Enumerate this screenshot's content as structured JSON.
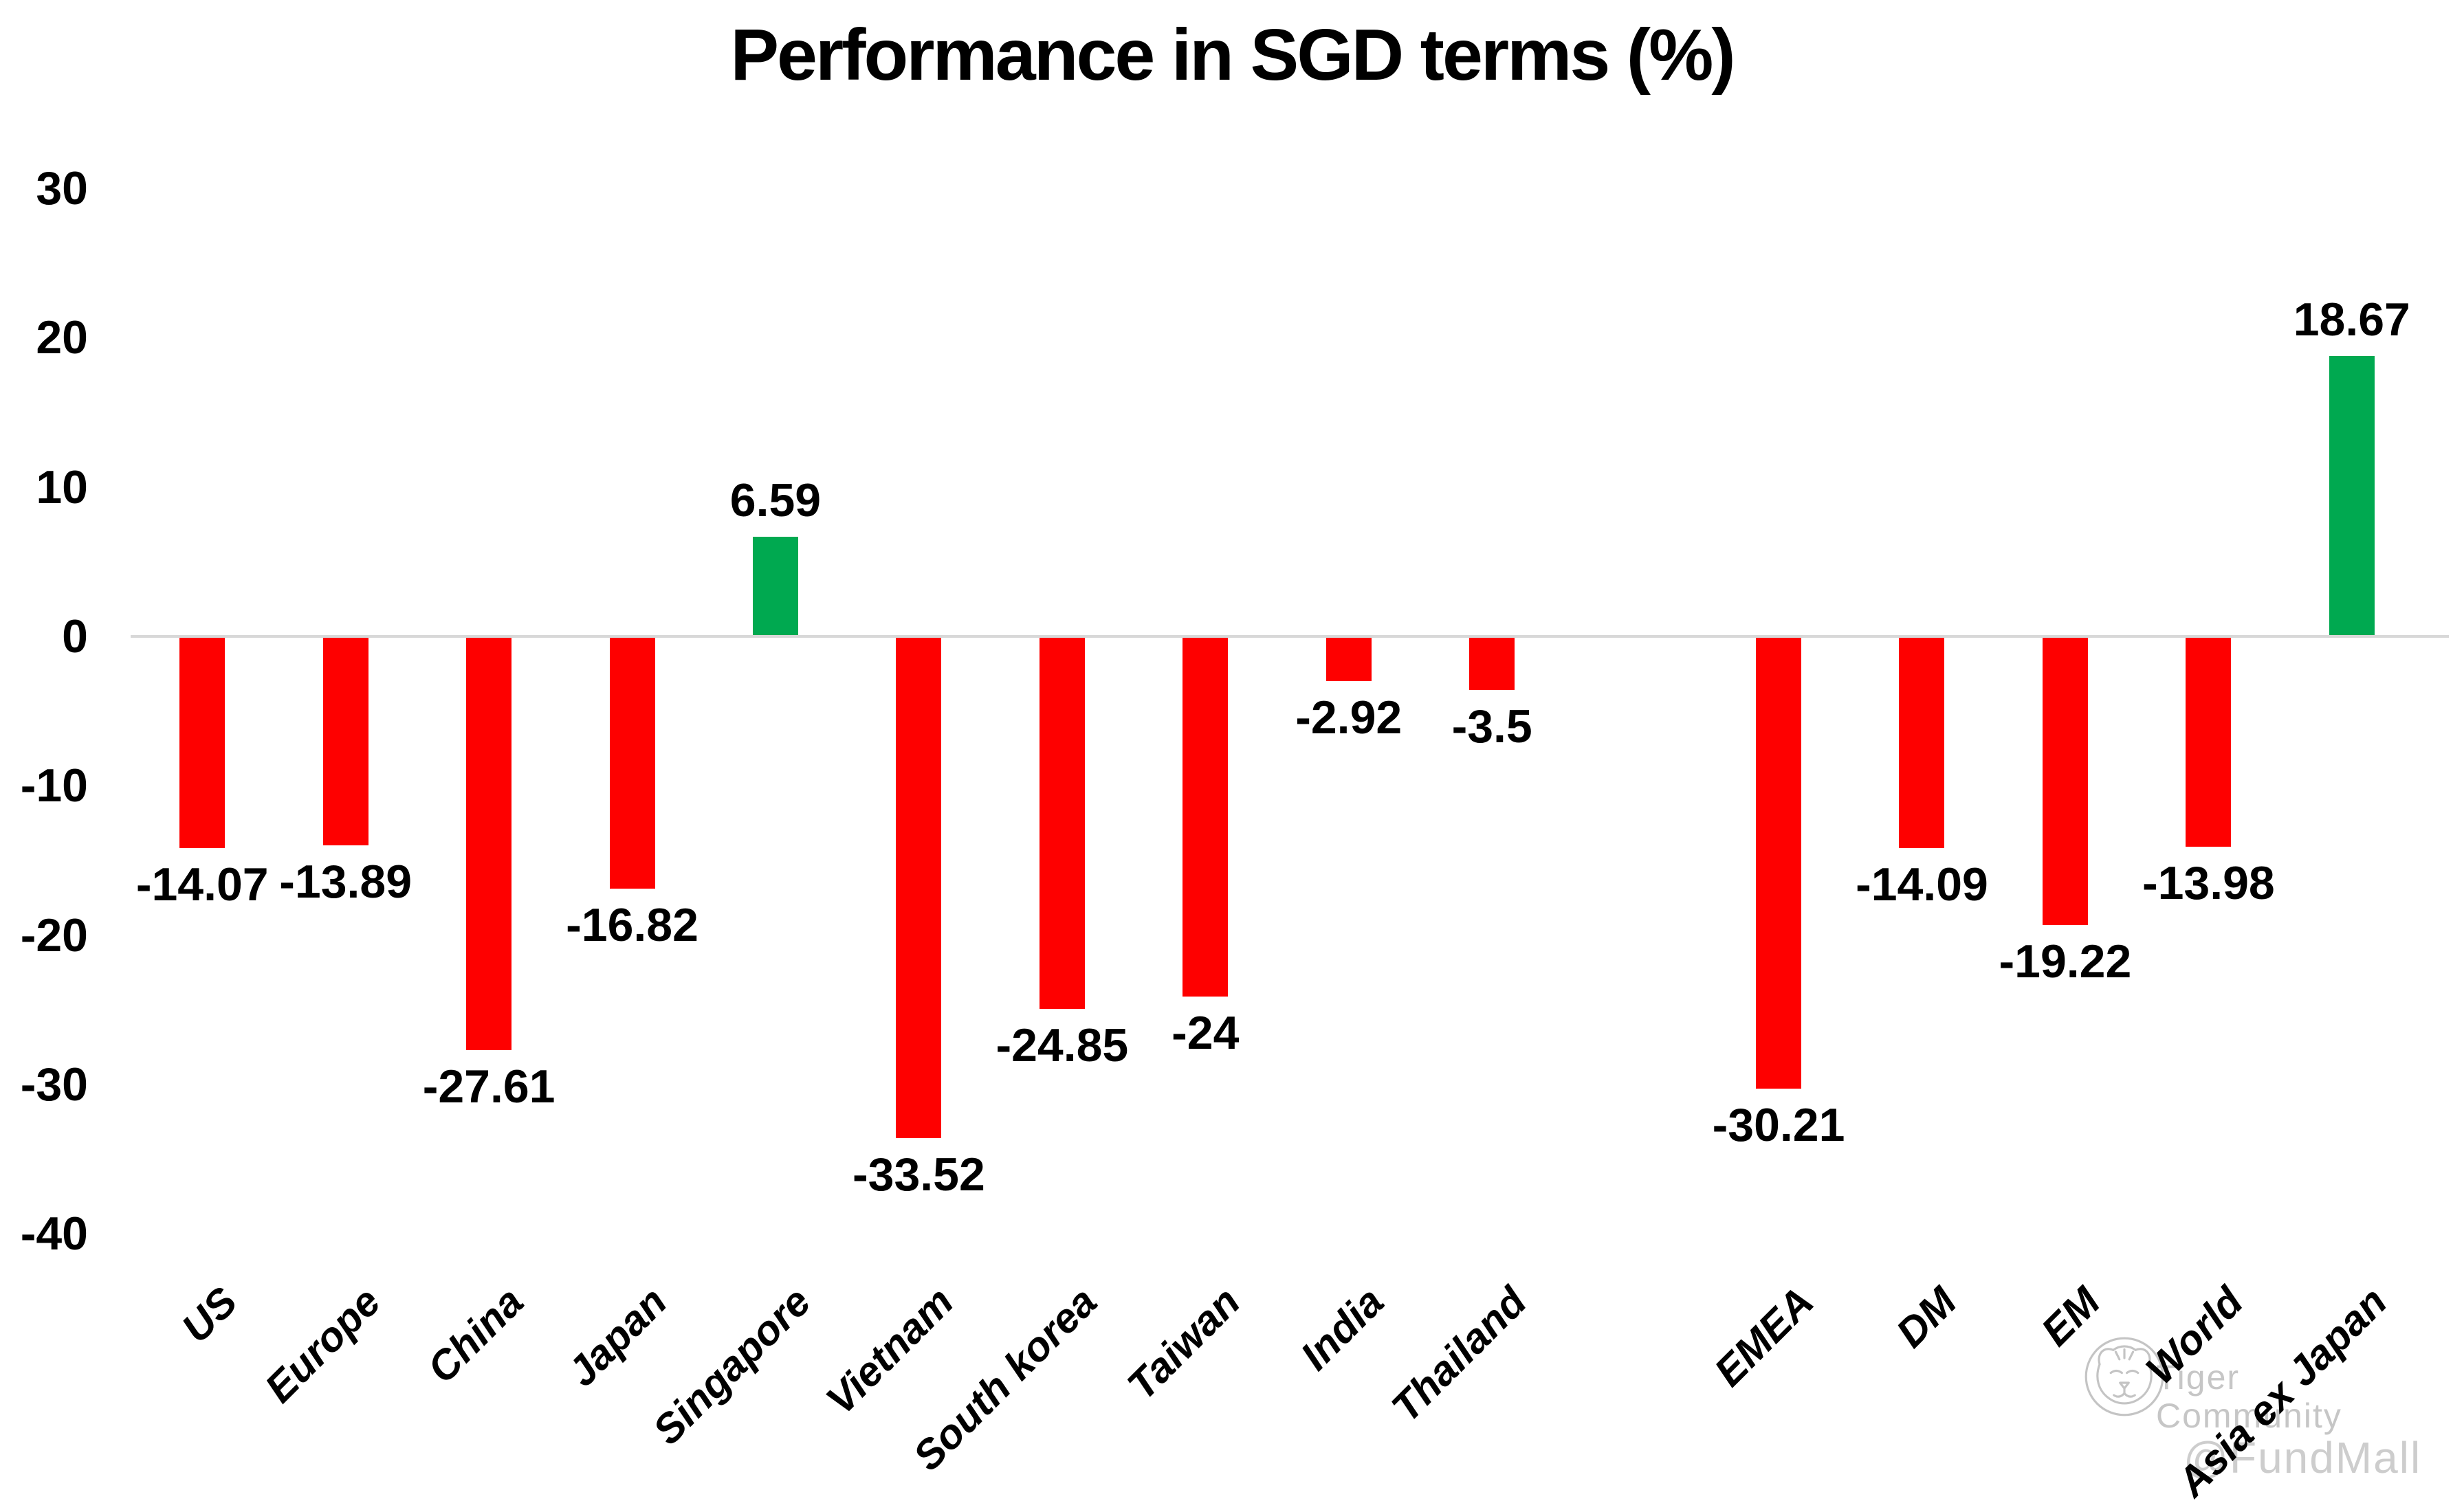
{
  "title": "Performance in SGD terms (%)",
  "colors": {
    "positive_bar": "#00A950",
    "negative_bar": "#FE0000",
    "zero_line": "#D8D8D8",
    "text": "#000000",
    "watermark_gray": "#C6C6C6"
  },
  "y_axis": {
    "tick_labels": [
      "30",
      "20",
      "10",
      "0",
      "-10",
      "-20",
      "-30",
      "-40"
    ]
  },
  "watermark": {
    "brand": "Tiger Community",
    "handle": "@FundMall",
    "logo": "tiger-circle-logo"
  },
  "chart_data": {
    "type": "bar",
    "title": "Performance in SGD terms (%)",
    "categories": [
      "US",
      "Europe",
      "China",
      "Japan",
      "Singapore",
      "Vietnam",
      "South korea",
      "Taiwan",
      "India",
      "Thailand",
      "EMEA",
      "DM",
      "EM",
      "World",
      "Asia ex Japan"
    ],
    "values": [
      -14.07,
      -13.89,
      -27.61,
      -16.82,
      6.59,
      -33.52,
      -24.85,
      -24,
      -2.92,
      -3.5,
      -30.21,
      -14.09,
      -19.22,
      -13.98,
      18.67
    ],
    "value_labels": [
      "-14.07",
      "-13.89",
      "-27.61",
      "-16.82",
      "6.59",
      "-33.52",
      "-24.85",
      "-24",
      "-2.92",
      "-3.5",
      "-30.21",
      "-14.09",
      "-19.22",
      "-13.98",
      "18.67"
    ],
    "gap_after_index": 9,
    "y_ticks": [
      30,
      20,
      10,
      0,
      -10,
      -20,
      -30,
      -40
    ],
    "ylim": [
      -40,
      30
    ],
    "xlabel": "",
    "ylabel": "",
    "grid": false,
    "legend": null,
    "x_label_rotation_deg": 45,
    "color_rule": "negative bars red, positive bars green"
  }
}
